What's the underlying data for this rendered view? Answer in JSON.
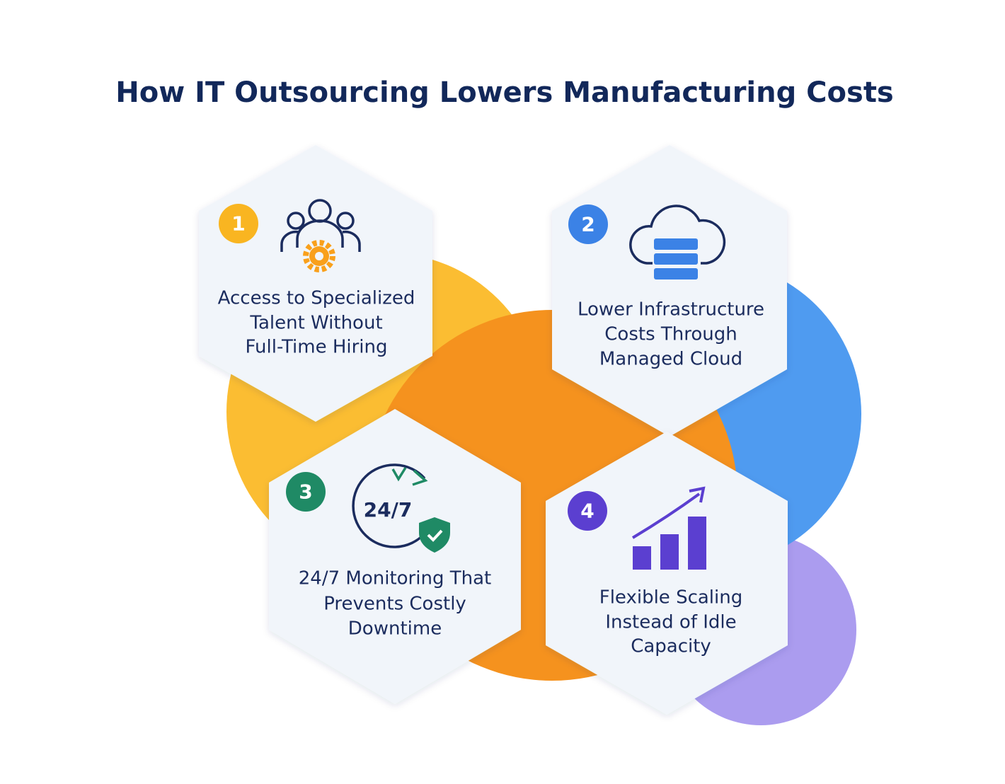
{
  "title": "How IT Outsourcing Lowers Manufacturing Costs",
  "items": [
    {
      "number": 1,
      "lines": [
        "Access to Specialized",
        "Talent Without",
        "Full-Time Hiring"
      ]
    },
    {
      "number": 2,
      "lines": [
        "Lower Infrastructure",
        "Costs Through",
        "Managed Cloud"
      ]
    },
    {
      "number": 3,
      "lines": [
        "24/7 Monitoring That",
        "Prevents Costly",
        "Downtime"
      ]
    },
    {
      "number": 4,
      "lines": [
        "Flexible Scaling",
        "Instead of Idle",
        "Capacity"
      ]
    }
  ]
}
